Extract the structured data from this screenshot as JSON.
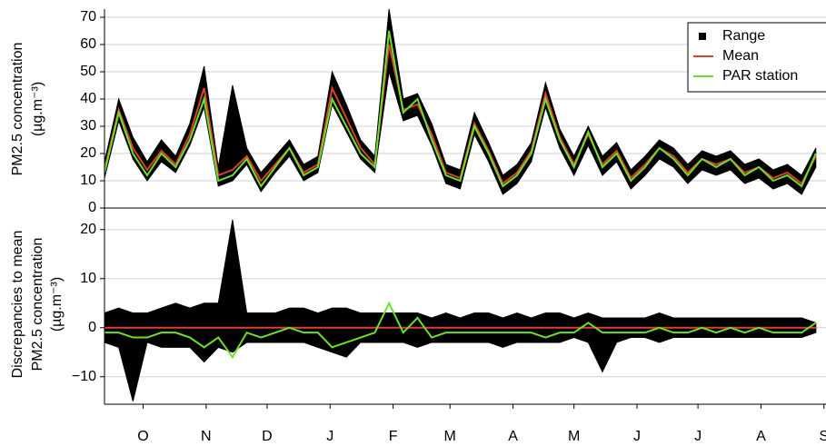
{
  "chart_data": [
    {
      "type": "line",
      "ylabel": [
        "PM2.5 concentration",
        "(µg.m⁻³)"
      ],
      "x": [
        0,
        7,
        14,
        21,
        28,
        35,
        42,
        49,
        56,
        63,
        70,
        77,
        84,
        91,
        98,
        105,
        112,
        119,
        126,
        133,
        140,
        147,
        154,
        161,
        168,
        175,
        182,
        189,
        196,
        203,
        210,
        217,
        224,
        231,
        238,
        245,
        252,
        259,
        266,
        273,
        280,
        287,
        294,
        301,
        308,
        315,
        322,
        329,
        336,
        343,
        350
      ],
      "xlim": [
        0,
        355
      ],
      "ylim": [
        0,
        73
      ],
      "yticks": [
        0,
        10,
        20,
        30,
        40,
        50,
        60,
        70
      ],
      "grid": true,
      "legend": "upper right",
      "series": [
        {
          "name": "Range",
          "color": "#000000",
          "values": [
            17,
            40,
            26,
            17,
            25,
            19,
            31,
            52,
            15,
            45,
            22,
            13,
            19,
            25,
            16,
            19,
            50,
            38,
            25,
            19,
            73,
            40,
            42,
            31,
            16,
            14,
            35,
            24,
            12,
            16,
            24,
            46,
            29,
            19,
            30,
            19,
            24,
            14,
            19,
            25,
            22,
            16,
            21,
            19,
            21,
            16,
            18,
            14,
            16,
            12,
            22
          ],
          "lower": [
            11,
            32,
            18,
            10,
            17,
            13,
            23,
            37,
            8,
            10,
            16,
            6,
            13,
            19,
            10,
            13,
            38,
            28,
            18,
            13,
            50,
            32,
            34,
            23,
            9,
            7,
            27,
            17,
            5,
            9,
            17,
            37,
            22,
            12,
            23,
            12,
            17,
            7,
            12,
            18,
            15,
            9,
            14,
            12,
            14,
            9,
            11,
            7,
            9,
            5,
            15
          ]
        },
        {
          "name": "Mean",
          "color": "#d9412b",
          "values": [
            14,
            36,
            22,
            14,
            21,
            16,
            27,
            44,
            12,
            14,
            19,
            10,
            16,
            22,
            13,
            16,
            44,
            33,
            22,
            16,
            60,
            36,
            38,
            27,
            13,
            11,
            31,
            21,
            9,
            13,
            21,
            42,
            26,
            16,
            27,
            16,
            21,
            11,
            16,
            22,
            19,
            13,
            18,
            16,
            18,
            13,
            15,
            11,
            13,
            9,
            19
          ]
        },
        {
          "name": "PAR station",
          "color": "#6be02a",
          "values": [
            13,
            35,
            20,
            12,
            20,
            15,
            25,
            40,
            10,
            12,
            18,
            8,
            15,
            22,
            12,
            15,
            40,
            30,
            20,
            15,
            65,
            35,
            40,
            25,
            12,
            10,
            30,
            20,
            8,
            12,
            20,
            40,
            25,
            15,
            28,
            15,
            20,
            10,
            15,
            22,
            18,
            12,
            18,
            15,
            18,
            12,
            15,
            10,
            12,
            8,
            20
          ]
        }
      ]
    },
    {
      "type": "line",
      "ylabel": [
        "Discrepancies to mean",
        "PM2.5 concentration",
        "(µg.m⁻³)"
      ],
      "x": [
        0,
        7,
        14,
        21,
        28,
        35,
        42,
        49,
        56,
        63,
        70,
        77,
        84,
        91,
        98,
        105,
        112,
        119,
        126,
        133,
        140,
        147,
        154,
        161,
        168,
        175,
        182,
        189,
        196,
        203,
        210,
        217,
        224,
        231,
        238,
        245,
        252,
        259,
        266,
        273,
        280,
        287,
        294,
        301,
        308,
        315,
        322,
        329,
        336,
        343,
        350
      ],
      "xlim": [
        0,
        355
      ],
      "xticks": [
        {
          "value": 19,
          "label": "O"
        },
        {
          "value": 50,
          "label": "N"
        },
        {
          "value": 80,
          "label": "D"
        },
        {
          "value": 111,
          "label": "J"
        },
        {
          "value": 142,
          "label": "F"
        },
        {
          "value": 170,
          "label": "M"
        },
        {
          "value": 201,
          "label": "A"
        },
        {
          "value": 231,
          "label": "M"
        },
        {
          "value": 262,
          "label": "J"
        },
        {
          "value": 292,
          "label": "J"
        },
        {
          "value": 323,
          "label": "A"
        },
        {
          "value": 354,
          "label": "S"
        }
      ],
      "ylim": [
        -15.6,
        24.4
      ],
      "yticks": [
        {
          "value": -10,
          "label": "−10"
        },
        0,
        10,
        20
      ],
      "grid": true,
      "series": [
        {
          "color": "#000000",
          "values": [
            3,
            4,
            3,
            3,
            4,
            5,
            4,
            5,
            5,
            22,
            3,
            3,
            3,
            4,
            4,
            3,
            4,
            4,
            3,
            3,
            3,
            3,
            3,
            2,
            3,
            2,
            3,
            3,
            2,
            3,
            2,
            3,
            3,
            2,
            3,
            2,
            2,
            2,
            2,
            3,
            2,
            2,
            2,
            2,
            2,
            2,
            2,
            2,
            2,
            2,
            1
          ],
          "lower": [
            -3,
            -4,
            -15,
            -3,
            -4,
            -4,
            -4,
            -7,
            -4,
            -5,
            -3,
            -3,
            -3,
            -3,
            -3,
            -4,
            -5,
            -6,
            -3,
            -3,
            -3,
            -3,
            -4,
            -3,
            -3,
            -3,
            -3,
            -3,
            -4,
            -3,
            -3,
            -3,
            -3,
            -2,
            -3,
            -9,
            -3,
            -2,
            -2,
            -3,
            -2,
            -2,
            -2,
            -2,
            -2,
            -2,
            -2,
            -2,
            -2,
            -2,
            -1
          ]
        },
        {
          "color": "#d9412b",
          "values": [
            0,
            0,
            0,
            0,
            0,
            0,
            0,
            0,
            0,
            0,
            0,
            0,
            0,
            0,
            0,
            0,
            0,
            0,
            0,
            0,
            0,
            0,
            0,
            0,
            0,
            0,
            0,
            0,
            0,
            0,
            0,
            0,
            0,
            0,
            0,
            0,
            0,
            0,
            0,
            0,
            0,
            0,
            0,
            0,
            0,
            0,
            0,
            0,
            0,
            0,
            0
          ]
        },
        {
          "color": "#6be02a",
          "values": [
            -1,
            -1,
            -2,
            -2,
            -1,
            -1,
            -2,
            -4,
            -2,
            -6,
            -1,
            -2,
            -1,
            0,
            -1,
            -1,
            -4,
            -3,
            -2,
            -1,
            5,
            -1,
            2,
            -2,
            -1,
            -1,
            -1,
            -1,
            -1,
            -1,
            -1,
            -2,
            -1,
            -1,
            1,
            -1,
            -1,
            -1,
            -1,
            0,
            -1,
            -1,
            0,
            -1,
            0,
            -1,
            0,
            -1,
            -1,
            -1,
            1
          ]
        }
      ]
    }
  ]
}
